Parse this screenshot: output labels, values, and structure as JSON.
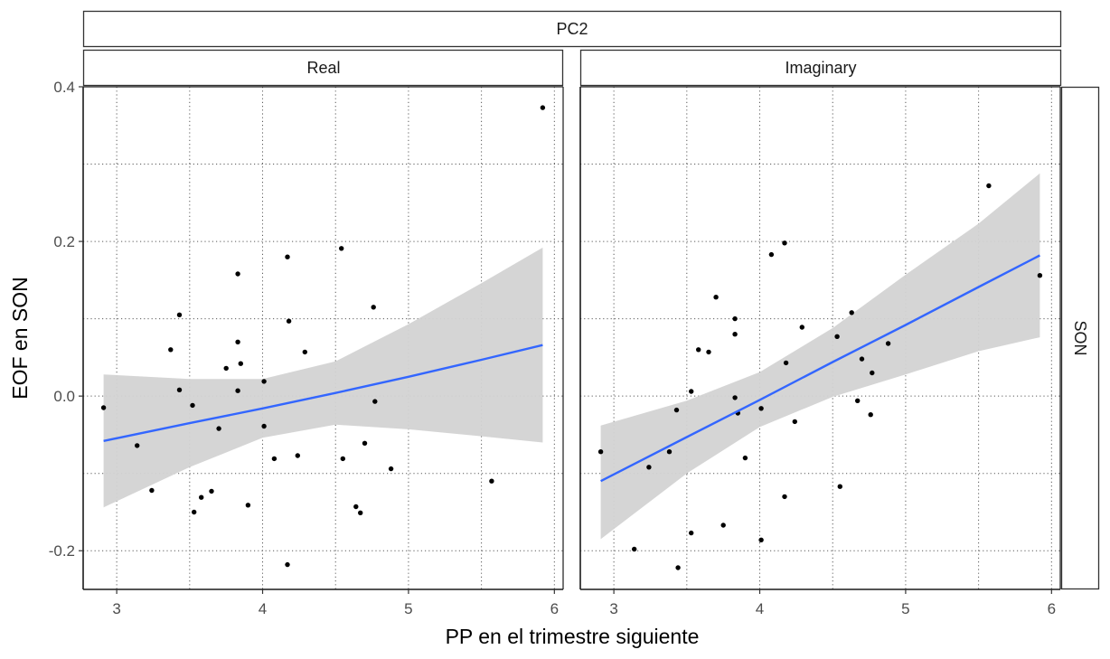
{
  "figure": {
    "outer_strip": "PC2",
    "row_strip": "SON",
    "xlabel": "PP en el trimestre siguiente",
    "ylabel": "EOF en  SON"
  },
  "colors": {
    "fit_line": "#3366FF",
    "ribbon": "#D3D3D3",
    "point": "#000000",
    "grid": "#5a5a5a",
    "strip_border": "#333333"
  },
  "chart_data": [
    {
      "type": "scatter",
      "panel": "Real",
      "xlim": [
        2.77,
        6.06
      ],
      "ylim": [
        -0.25,
        0.4
      ],
      "x_ticks": [
        3,
        4,
        5,
        6
      ],
      "y_ticks": [
        -0.2,
        0.0,
        0.2,
        0.4
      ],
      "grid": true,
      "points": [
        [
          2.91,
          -0.015
        ],
        [
          3.14,
          -0.064
        ],
        [
          3.24,
          -0.122
        ],
        [
          3.37,
          0.06
        ],
        [
          3.43,
          0.105
        ],
        [
          3.43,
          0.008
        ],
        [
          3.52,
          -0.012
        ],
        [
          3.53,
          -0.15
        ],
        [
          3.58,
          -0.131
        ],
        [
          3.65,
          -0.123
        ],
        [
          3.7,
          -0.042
        ],
        [
          3.75,
          0.036
        ],
        [
          3.83,
          0.158
        ],
        [
          3.83,
          0.07
        ],
        [
          3.83,
          0.007
        ],
        [
          3.85,
          0.042
        ],
        [
          3.9,
          -0.141
        ],
        [
          4.01,
          0.019
        ],
        [
          4.01,
          -0.039
        ],
        [
          4.08,
          -0.081
        ],
        [
          4.17,
          0.18
        ],
        [
          4.18,
          0.097
        ],
        [
          4.17,
          -0.218
        ],
        [
          4.24,
          -0.077
        ],
        [
          4.29,
          0.057
        ],
        [
          4.54,
          0.191
        ],
        [
          4.55,
          -0.081
        ],
        [
          4.64,
          -0.143
        ],
        [
          4.67,
          -0.151
        ],
        [
          4.7,
          -0.061
        ],
        [
          4.76,
          0.115
        ],
        [
          4.77,
          -0.007
        ],
        [
          4.88,
          -0.094
        ],
        [
          5.57,
          -0.11
        ],
        [
          5.92,
          0.373
        ]
      ],
      "fit": {
        "x": [
          2.91,
          3.5,
          4.0,
          4.5,
          5.0,
          5.5,
          5.92
        ],
        "y": [
          -0.058,
          -0.035,
          -0.016,
          0.004,
          0.025,
          0.047,
          0.066
        ],
        "lower": [
          -0.144,
          -0.092,
          -0.054,
          -0.037,
          -0.043,
          -0.052,
          -0.06
        ],
        "upper": [
          0.028,
          0.022,
          0.022,
          0.045,
          0.093,
          0.146,
          0.192
        ]
      }
    },
    {
      "type": "scatter",
      "panel": "Imaginary",
      "xlim": [
        2.77,
        6.06
      ],
      "ylim": [
        -0.25,
        0.4
      ],
      "x_ticks": [
        3,
        4,
        5,
        6
      ],
      "y_ticks": [
        -0.2,
        0.0,
        0.2,
        0.4
      ],
      "grid": true,
      "points": [
        [
          2.91,
          -0.072
        ],
        [
          3.14,
          -0.198
        ],
        [
          3.24,
          -0.092
        ],
        [
          3.38,
          -0.072
        ],
        [
          3.43,
          -0.018
        ],
        [
          3.44,
          -0.222
        ],
        [
          3.53,
          0.006
        ],
        [
          3.53,
          -0.177
        ],
        [
          3.58,
          0.06
        ],
        [
          3.65,
          0.057
        ],
        [
          3.7,
          0.128
        ],
        [
          3.75,
          -0.167
        ],
        [
          3.83,
          0.1
        ],
        [
          3.83,
          0.08
        ],
        [
          3.83,
          -0.002
        ],
        [
          3.85,
          -0.022
        ],
        [
          3.9,
          -0.08
        ],
        [
          4.01,
          -0.016
        ],
        [
          4.01,
          -0.186
        ],
        [
          4.08,
          0.183
        ],
        [
          4.17,
          0.198
        ],
        [
          4.18,
          0.043
        ],
        [
          4.17,
          -0.13
        ],
        [
          4.24,
          -0.033
        ],
        [
          4.29,
          0.089
        ],
        [
          4.53,
          0.077
        ],
        [
          4.55,
          -0.117
        ],
        [
          4.63,
          0.108
        ],
        [
          4.67,
          -0.006
        ],
        [
          4.7,
          0.048
        ],
        [
          4.76,
          -0.024
        ],
        [
          4.77,
          0.03
        ],
        [
          4.88,
          0.068
        ],
        [
          5.57,
          0.272
        ],
        [
          5.92,
          0.156
        ]
      ],
      "fit": {
        "x": [
          2.91,
          3.5,
          4.0,
          4.5,
          5.0,
          5.5,
          5.92
        ],
        "y": [
          -0.11,
          -0.053,
          -0.005,
          0.044,
          0.092,
          0.141,
          0.182
        ],
        "lower": [
          -0.185,
          -0.1,
          -0.04,
          -0.001,
          0.028,
          0.058,
          0.076
        ],
        "upper": [
          -0.038,
          -0.006,
          0.031,
          0.088,
          0.157,
          0.223,
          0.288
        ]
      }
    }
  ]
}
